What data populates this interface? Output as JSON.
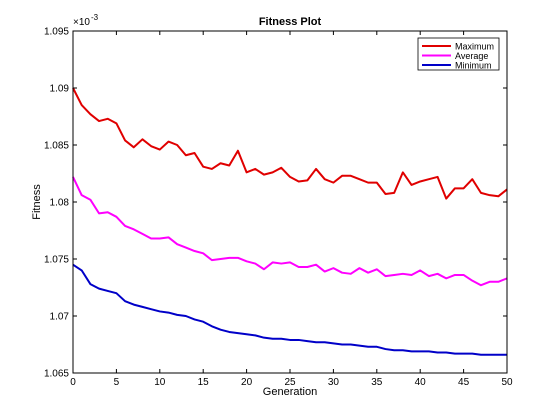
{
  "chart_data": {
    "type": "line",
    "title": "Fitness Plot",
    "xlabel": "Generation",
    "ylabel": "Fitness",
    "y_exponent_label": "×10",
    "y_exponent_power": "-3",
    "xlim": [
      0,
      50
    ],
    "ylim": [
      1.065,
      1.095
    ],
    "x_ticks": [
      0,
      5,
      10,
      15,
      20,
      25,
      30,
      35,
      40,
      45,
      50
    ],
    "y_ticks": [
      1.065,
      1.07,
      1.075,
      1.08,
      1.085,
      1.09,
      1.095
    ],
    "y_tick_labels": [
      "1.065",
      "1.07",
      "1.075",
      "1.08",
      "1.085",
      "1.09",
      "1.095"
    ],
    "legend_position": "top-right",
    "x": [
      0,
      1,
      2,
      3,
      4,
      5,
      6,
      7,
      8,
      9,
      10,
      11,
      12,
      13,
      14,
      15,
      16,
      17,
      18,
      19,
      20,
      21,
      22,
      23,
      24,
      25,
      26,
      27,
      28,
      29,
      30,
      31,
      32,
      33,
      34,
      35,
      36,
      37,
      38,
      39,
      40,
      41,
      42,
      43,
      44,
      45,
      46,
      47,
      48,
      49,
      50
    ],
    "series": [
      {
        "name": "Maximum",
        "color": "#e00000",
        "values": [
          1.09,
          1.0885,
          1.0877,
          1.0871,
          1.0873,
          1.0869,
          1.0854,
          1.0848,
          1.0855,
          1.0849,
          1.0846,
          1.0853,
          1.085,
          1.0841,
          1.0843,
          1.0831,
          1.0829,
          1.0834,
          1.0832,
          1.0845,
          1.0826,
          1.0829,
          1.0824,
          1.0826,
          1.083,
          1.0822,
          1.0818,
          1.0819,
          1.0829,
          1.082,
          1.0817,
          1.0823,
          1.0823,
          1.082,
          1.0817,
          1.0817,
          1.0807,
          1.0808,
          1.0826,
          1.0815,
          1.0818,
          1.082,
          1.0822,
          1.0803,
          1.0812,
          1.0812,
          1.082,
          1.0808,
          1.0806,
          1.0805,
          1.0811
        ]
      },
      {
        "name": "Average",
        "color": "#ff00ff",
        "values": [
          1.0822,
          1.0806,
          1.0802,
          1.079,
          1.0791,
          1.0787,
          1.0779,
          1.0776,
          1.0772,
          1.0768,
          1.0768,
          1.0769,
          1.0763,
          1.076,
          1.0757,
          1.0755,
          1.0749,
          1.075,
          1.0751,
          1.0751,
          1.0748,
          1.0746,
          1.0741,
          1.0747,
          1.0746,
          1.0747,
          1.0743,
          1.0743,
          1.0745,
          1.0739,
          1.0742,
          1.0738,
          1.0737,
          1.0742,
          1.0738,
          1.0741,
          1.0735,
          1.0736,
          1.0737,
          1.0736,
          1.074,
          1.0735,
          1.0737,
          1.0733,
          1.0736,
          1.0736,
          1.0731,
          1.0727,
          1.073,
          1.073,
          1.0733
        ]
      },
      {
        "name": "Minimum",
        "color": "#0000c8",
        "values": [
          1.0745,
          1.074,
          1.0728,
          1.0724,
          1.0722,
          1.072,
          1.0713,
          1.071,
          1.0708,
          1.0706,
          1.0704,
          1.0703,
          1.0701,
          1.07,
          1.0697,
          1.0695,
          1.0691,
          1.0688,
          1.0686,
          1.0685,
          1.0684,
          1.0683,
          1.0681,
          1.068,
          1.068,
          1.0679,
          1.0679,
          1.0678,
          1.0677,
          1.0677,
          1.0676,
          1.0675,
          1.0675,
          1.0674,
          1.0673,
          1.0673,
          1.0671,
          1.067,
          1.067,
          1.0669,
          1.0669,
          1.0669,
          1.0668,
          1.0668,
          1.0667,
          1.0667,
          1.0667,
          1.0666,
          1.0666,
          1.0666,
          1.0666
        ]
      }
    ]
  }
}
